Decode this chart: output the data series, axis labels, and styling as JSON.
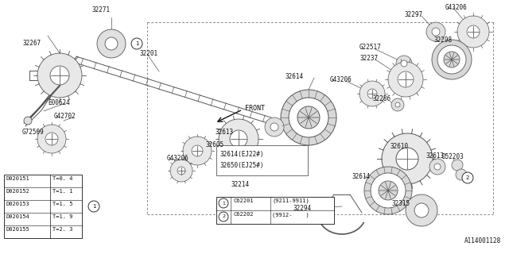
{
  "bg_color": "#ffffff",
  "line_color": "#555555",
  "part_number_ref": "A114001128",
  "parts_table_rows": [
    [
      "D020151",
      "T=0. 4"
    ],
    [
      "D020152",
      "T=1. 1"
    ],
    [
      "D020153",
      "T=1. 5"
    ],
    [
      "D020154",
      "T=1. 9"
    ],
    [
      "D020155",
      "T=2. 3"
    ]
  ]
}
